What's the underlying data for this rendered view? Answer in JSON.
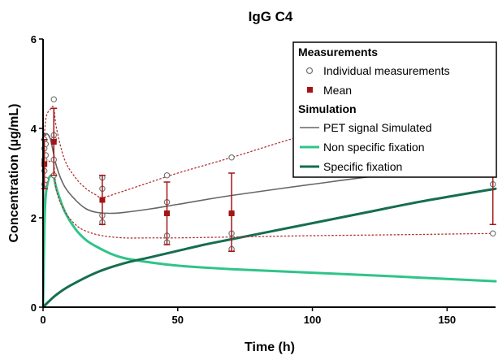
{
  "colors": {
    "measurement_marker": "#777777",
    "mean": "#a31515",
    "ci": "#b03030",
    "pet": "#666666",
    "nonspecific": "#2fc48a",
    "specific": "#156e50"
  },
  "chart_data": {
    "type": "line",
    "title": "IgG  C4",
    "xlabel": "Time (h)",
    "ylabel": "Concentration (µg/mL)",
    "xlim": [
      0,
      168
    ],
    "ylim": [
      0,
      6
    ],
    "xticks": [
      0,
      50,
      100,
      150
    ],
    "yticks": [
      0,
      2,
      4,
      6
    ],
    "grid": false,
    "legend_position": "top-right",
    "legend": {
      "measurements_heading": "Measurements",
      "individual_label": "Individual measurements",
      "mean_label": "Mean",
      "simulation_heading": "Simulation",
      "pet_label": "PET signal Simulated",
      "nonspecific_label": "Non specific fixation",
      "specific_label": "Specific fixation"
    },
    "individual_measurements": [
      {
        "x": 0.5,
        "y": 2.75
      },
      {
        "x": 0.5,
        "y": 3.05
      },
      {
        "x": 0.5,
        "y": 3.3
      },
      {
        "x": 0.5,
        "y": 3.55
      },
      {
        "x": 0.5,
        "y": 3.75
      },
      {
        "x": 1,
        "y": 2.85
      },
      {
        "x": 1,
        "y": 3.4
      },
      {
        "x": 1,
        "y": 3.65
      },
      {
        "x": 4,
        "y": 2.95
      },
      {
        "x": 4,
        "y": 3.3
      },
      {
        "x": 4,
        "y": 3.75
      },
      {
        "x": 4,
        "y": 3.85
      },
      {
        "x": 4,
        "y": 4.65
      },
      {
        "x": 22,
        "y": 1.9
      },
      {
        "x": 22,
        "y": 2.05
      },
      {
        "x": 22,
        "y": 2.65
      },
      {
        "x": 22,
        "y": 2.9
      },
      {
        "x": 46,
        "y": 1.45
      },
      {
        "x": 46,
        "y": 1.6
      },
      {
        "x": 46,
        "y": 2.35
      },
      {
        "x": 46,
        "y": 2.95
      },
      {
        "x": 70,
        "y": 1.3
      },
      {
        "x": 70,
        "y": 1.65
      },
      {
        "x": 70,
        "y": 2.1
      },
      {
        "x": 70,
        "y": 3.35
      },
      {
        "x": 167,
        "y": 1.65
      },
      {
        "x": 167,
        "y": 2.75
      },
      {
        "x": 167,
        "y": 4.45
      },
      {
        "x": 167,
        "y": 5.45
      }
    ],
    "mean": [
      {
        "x": 0.5,
        "y": 3.2,
        "low": 2.65,
        "high": 3.75
      },
      {
        "x": 4,
        "y": 3.7,
        "low": 2.95,
        "high": 4.45
      },
      {
        "x": 22,
        "y": 2.4,
        "low": 1.85,
        "high": 2.95
      },
      {
        "x": 46,
        "y": 2.1,
        "low": 1.4,
        "high": 2.8
      },
      {
        "x": 70,
        "y": 2.1,
        "low": 1.25,
        "high": 3.0
      },
      {
        "x": 167,
        "y": 3.6,
        "low": 1.85,
        "high": 5.3
      }
    ],
    "series": [
      {
        "name": "PET signal Simulated",
        "style": "solid",
        "x": [
          0,
          0.3,
          1,
          2,
          3,
          5,
          8,
          12,
          16,
          20,
          25,
          30,
          40,
          50,
          70,
          100,
          130,
          168
        ],
        "y": [
          0,
          3.5,
          3.85,
          3.85,
          3.7,
          3.15,
          2.7,
          2.4,
          2.2,
          2.12,
          2.1,
          2.12,
          2.2,
          2.3,
          2.5,
          2.75,
          2.98,
          3.2
        ]
      },
      {
        "name": "Non specific fixation",
        "style": "solid",
        "x": [
          0,
          0.5,
          1,
          2,
          3,
          4,
          5,
          8,
          12,
          16,
          20,
          25,
          30,
          40,
          50,
          70,
          100,
          130,
          168
        ],
        "y": [
          0,
          1.8,
          2.5,
          2.85,
          2.95,
          2.9,
          2.65,
          2.15,
          1.75,
          1.5,
          1.35,
          1.2,
          1.1,
          1.0,
          0.93,
          0.85,
          0.77,
          0.69,
          0.58
        ]
      },
      {
        "name": "Specific fixation",
        "style": "solid",
        "x": [
          0,
          2,
          5,
          10,
          20,
          30,
          40,
          50,
          60,
          70,
          80,
          100,
          120,
          140,
          168
        ],
        "y": [
          0,
          0.12,
          0.28,
          0.48,
          0.78,
          0.98,
          1.12,
          1.26,
          1.4,
          1.52,
          1.64,
          1.88,
          2.12,
          2.36,
          2.65
        ]
      },
      {
        "name": "",
        "style": "dotted",
        "x": [
          0,
          1,
          3,
          4,
          5,
          8,
          12,
          16,
          20,
          22,
          30,
          40,
          50,
          70,
          100,
          130,
          168
        ],
        "y": [
          3.3,
          4.2,
          4.45,
          4.45,
          4.0,
          3.3,
          2.9,
          2.65,
          2.5,
          2.45,
          2.6,
          2.8,
          3.0,
          3.35,
          3.9,
          4.35,
          4.8
        ]
      },
      {
        "name": "",
        "style": "dotted",
        "x": [
          0,
          1,
          3,
          4,
          5,
          8,
          12,
          16,
          22,
          30,
          40,
          50,
          70,
          100,
          130,
          168
        ],
        "y": [
          2.5,
          3.2,
          3.25,
          3.2,
          2.6,
          2.15,
          1.85,
          1.7,
          1.6,
          1.55,
          1.55,
          1.55,
          1.57,
          1.6,
          1.62,
          1.65
        ]
      }
    ]
  }
}
